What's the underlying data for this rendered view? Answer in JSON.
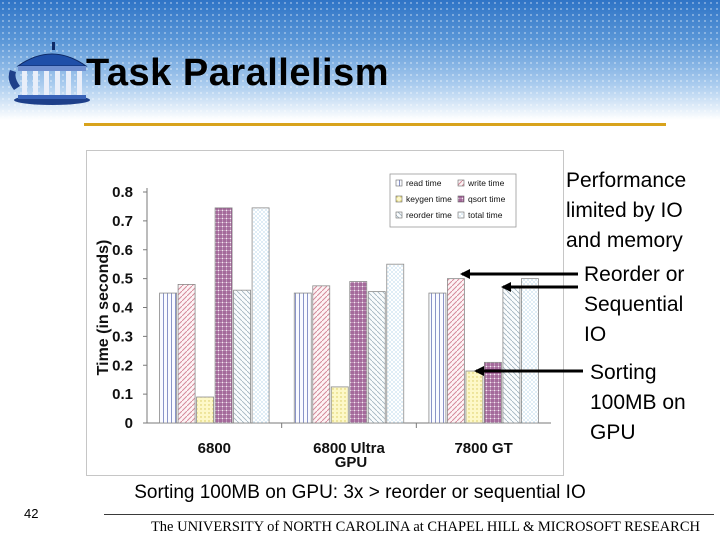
{
  "slide": {
    "title": "Task Parallelism",
    "page_number": "42",
    "caption": "Sorting 100MB on GPU: 3x > reorder or sequential IO",
    "footer": "The UNIVERSITY of NORTH CAROLINA at CHAPEL HILL & MICROSOFT RESEARCH"
  },
  "callouts": [
    {
      "lines": [
        "Performance",
        "limited by IO",
        "and memory"
      ]
    },
    {
      "lines": [
        "Reorder or",
        "Sequential",
        "IO"
      ]
    },
    {
      "lines": [
        "Sorting",
        "100MB on",
        "GPU"
      ]
    }
  ],
  "colors": {
    "accent_rule": "#d8a31c",
    "read": "#dde2f7",
    "write": "#f2d9de",
    "keygen": "#fbf3b4",
    "qsort": "#9b4f8f",
    "reorder": "#e8eef2",
    "total": "#e6f2fa"
  },
  "chart_data": {
    "type": "bar",
    "categories": [
      "6800",
      "6800 Ultra",
      "7800 GT"
    ],
    "xlabel": "GPU",
    "ylabel": "Time (in seconds)",
    "ylim": [
      0,
      0.8
    ],
    "yticks": [
      "0",
      "0.1",
      "0.2",
      "0.3",
      "0.4",
      "0.5",
      "0.6",
      "0.7",
      "0.8"
    ],
    "grid": false,
    "legend_position": "top-right",
    "series": [
      {
        "name": "read time",
        "values": [
          0.45,
          0.45,
          0.45
        ],
        "color": "#dde2f7"
      },
      {
        "name": "write time",
        "values": [
          0.48,
          0.475,
          0.5
        ],
        "color": "#f2d9de"
      },
      {
        "name": "keygen time",
        "values": [
          0.09,
          0.125,
          0.18
        ],
        "color": "#fbf3b4"
      },
      {
        "name": "qsort time",
        "values": [
          0.745,
          0.49,
          0.21
        ],
        "color": "#9b4f8f"
      },
      {
        "name": "reorder time",
        "values": [
          0.46,
          0.455,
          0.47
        ],
        "color": "#e8eef2"
      },
      {
        "name": "total time",
        "values": [
          0.745,
          0.55,
          0.5
        ],
        "color": "#e6f2fa"
      }
    ]
  }
}
